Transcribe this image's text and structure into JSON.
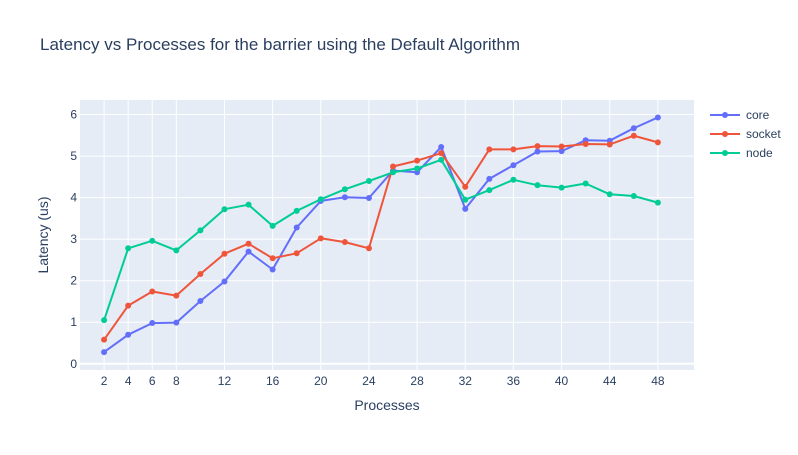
{
  "chart_data": {
    "type": "line",
    "title": "Latency vs Processes for the barrier using the Default Algorithm",
    "xlabel": "Processes",
    "ylabel": "Latency (us)",
    "xlim": [
      0,
      51
    ],
    "ylim": [
      -0.15,
      6.35
    ],
    "x_ticks": [
      2,
      4,
      6,
      8,
      12,
      16,
      20,
      24,
      28,
      32,
      36,
      40,
      44,
      48
    ],
    "y_ticks": [
      0,
      1,
      2,
      3,
      4,
      5,
      6
    ],
    "grid": true,
    "legend_position": "top-right",
    "x": [
      2,
      4,
      6,
      8,
      10,
      12,
      14,
      16,
      18,
      20,
      22,
      24,
      26,
      28,
      30,
      32,
      34,
      36,
      38,
      40,
      42,
      44,
      46,
      48
    ],
    "series": [
      {
        "name": "core",
        "color": "#636efa",
        "values": [
          0.28,
          0.7,
          0.98,
          0.99,
          1.51,
          1.98,
          2.7,
          2.27,
          3.28,
          3.92,
          4.01,
          3.99,
          4.65,
          4.61,
          5.22,
          3.73,
          4.45,
          4.78,
          5.11,
          5.12,
          5.38,
          5.37,
          5.67,
          5.93
        ]
      },
      {
        "name": "socket",
        "color": "#ef553b",
        "values": [
          0.58,
          1.4,
          1.74,
          1.64,
          2.16,
          2.65,
          2.89,
          2.54,
          2.66,
          3.02,
          2.93,
          2.78,
          4.75,
          4.89,
          5.07,
          4.26,
          5.16,
          5.16,
          5.24,
          5.23,
          5.29,
          5.28,
          5.49,
          5.33
        ]
      },
      {
        "name": "node",
        "color": "#00cc96",
        "values": [
          1.05,
          2.78,
          2.96,
          2.73,
          3.21,
          3.72,
          3.83,
          3.32,
          3.68,
          3.96,
          4.2,
          4.4,
          4.61,
          4.7,
          4.91,
          3.95,
          4.18,
          4.43,
          4.3,
          4.24,
          4.34,
          4.08,
          4.04,
          3.88
        ]
      }
    ]
  }
}
